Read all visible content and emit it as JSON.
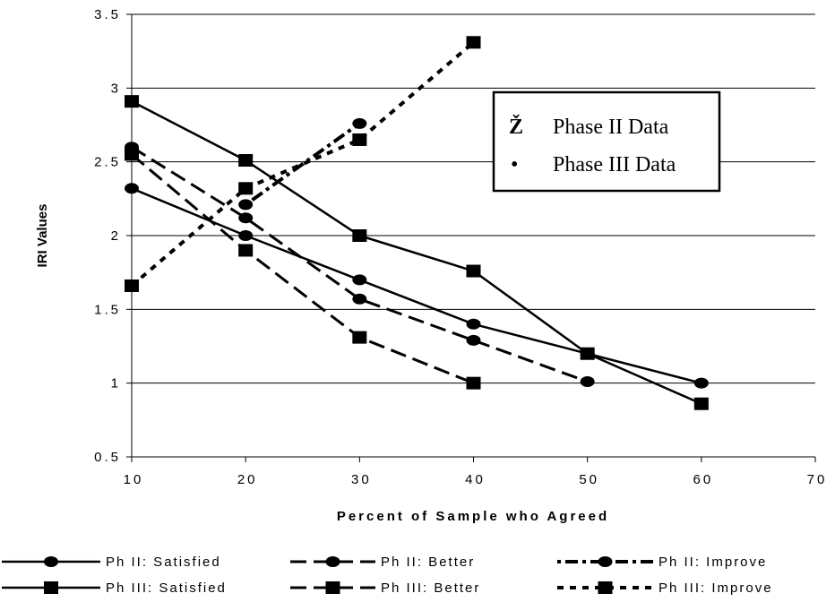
{
  "chart_data": {
    "type": "line",
    "xlabel": "Percent of Sample who Agreed",
    "ylabel": "IRI Values",
    "xlim": [
      10,
      70
    ],
    "ylim": [
      0.5,
      3.5
    ],
    "x_ticks": [
      "10",
      "20",
      "30",
      "40",
      "50",
      "60",
      "70"
    ],
    "y_ticks": [
      "0.5",
      "1",
      "1.5",
      "2",
      "2.5",
      "3",
      "3.5"
    ],
    "grid": "horizontal",
    "series": [
      {
        "name": "Ph II: Satisfied",
        "marker": "circle",
        "dash": "solid",
        "points": [
          [
            10,
            2.32
          ],
          [
            20,
            2.0
          ],
          [
            30,
            1.7
          ],
          [
            40,
            1.4
          ],
          [
            50,
            1.2
          ],
          [
            60,
            1.0
          ]
        ]
      },
      {
        "name": "Ph II: Better",
        "marker": "circle",
        "dash": "long-dash",
        "points": [
          [
            10,
            2.6
          ],
          [
            20,
            2.12
          ],
          [
            30,
            1.57
          ],
          [
            40,
            1.29
          ],
          [
            50,
            1.01
          ]
        ]
      },
      {
        "name": "Ph II: Improve",
        "marker": "circle",
        "dash": "dash-dot",
        "points": [
          [
            20,
            2.21
          ],
          [
            30,
            2.76
          ]
        ]
      },
      {
        "name": "Ph III: Satisfied",
        "marker": "square",
        "dash": "solid",
        "points": [
          [
            10,
            2.91
          ],
          [
            20,
            2.51
          ],
          [
            30,
            2.0
          ],
          [
            40,
            1.76
          ],
          [
            50,
            1.2
          ],
          [
            60,
            0.86
          ]
        ]
      },
      {
        "name": "Ph III: Better",
        "marker": "square",
        "dash": "long-dash",
        "points": [
          [
            10,
            2.55
          ],
          [
            20,
            1.9
          ],
          [
            30,
            1.31
          ],
          [
            40,
            1.0
          ]
        ]
      },
      {
        "name": "Ph III: Improve",
        "marker": "square",
        "dash": "short-dash",
        "points": [
          [
            10,
            1.66
          ],
          [
            20,
            2.32
          ],
          [
            30,
            2.65
          ],
          [
            40,
            3.31
          ]
        ]
      }
    ],
    "legend": {
      "placement": "bottom",
      "items": [
        "Ph II: Satisfied",
        "Ph II: Better",
        "Ph II: Improve",
        "Ph III: Satisfied",
        "Ph III: Better",
        "Ph III: Improve"
      ]
    },
    "inset_legend": {
      "placement": "upper-right",
      "items": [
        {
          "symbol": "Ž",
          "label": "Phase II Data"
        },
        {
          "symbol": "•",
          "label": "Phase III Data"
        }
      ]
    }
  }
}
